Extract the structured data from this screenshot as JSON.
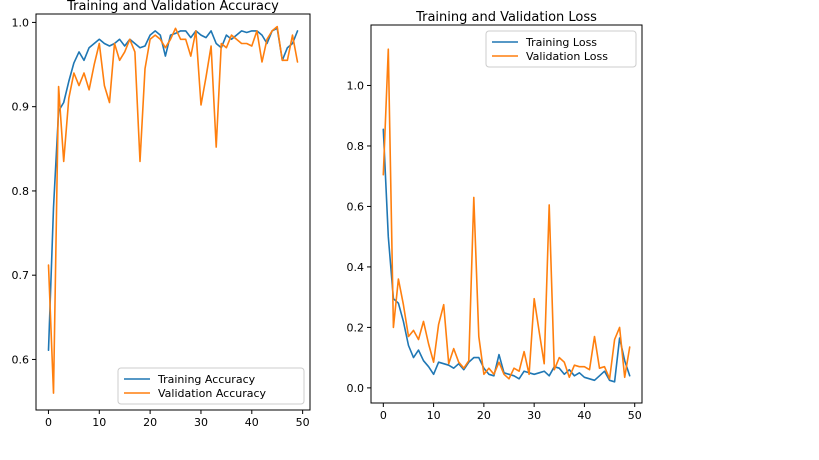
{
  "colors": {
    "training": "#1f77b4",
    "validation": "#ff7f0e"
  },
  "chart_data": [
    {
      "type": "line",
      "title": "Training and Validation Accuracy",
      "xlabel": "",
      "ylabel": "",
      "xlim": [
        -2.45,
        51.45
      ],
      "ylim": [
        0.54,
        1.01
      ],
      "xticks": [
        0,
        10,
        20,
        30,
        40,
        50
      ],
      "xtick_labels": [
        "0",
        "10",
        "20",
        "30",
        "40",
        "50"
      ],
      "yticks": [
        0.6,
        0.7,
        0.8,
        0.9,
        1.0
      ],
      "ytick_labels": [
        "0.6",
        "0.7",
        "0.8",
        "0.9",
        "1.0"
      ],
      "legend": "bottom-right",
      "grid": false,
      "x": [
        0,
        1,
        2,
        3,
        4,
        5,
        6,
        7,
        8,
        9,
        10,
        11,
        12,
        13,
        14,
        15,
        16,
        17,
        18,
        19,
        20,
        21,
        22,
        23,
        24,
        25,
        26,
        27,
        28,
        29,
        30,
        31,
        32,
        33,
        34,
        35,
        36,
        37,
        38,
        39,
        40,
        41,
        42,
        43,
        44,
        45,
        46,
        47,
        48,
        49
      ],
      "series": [
        {
          "name": "Training Accuracy",
          "color": "#1f77b4",
          "values": [
            0.611,
            0.78,
            0.895,
            0.905,
            0.93,
            0.952,
            0.965,
            0.955,
            0.97,
            0.975,
            0.98,
            0.975,
            0.972,
            0.975,
            0.98,
            0.972,
            0.98,
            0.975,
            0.97,
            0.972,
            0.985,
            0.99,
            0.985,
            0.96,
            0.985,
            0.987,
            0.99,
            0.99,
            0.982,
            0.99,
            0.985,
            0.982,
            0.99,
            0.975,
            0.97,
            0.985,
            0.98,
            0.985,
            0.99,
            0.988,
            0.99,
            0.99,
            0.985,
            0.975,
            0.99,
            0.993,
            0.955,
            0.97,
            0.975,
            0.99
          ]
        },
        {
          "name": "Validation Accuracy",
          "color": "#ff7f0e",
          "values": [
            0.712,
            0.56,
            0.924,
            0.835,
            0.91,
            0.94,
            0.925,
            0.94,
            0.92,
            0.95,
            0.975,
            0.925,
            0.905,
            0.975,
            0.955,
            0.965,
            0.98,
            0.965,
            0.835,
            0.945,
            0.98,
            0.985,
            0.98,
            0.97,
            0.98,
            0.993,
            0.98,
            0.98,
            0.96,
            0.99,
            0.902,
            0.935,
            0.972,
            0.852,
            0.975,
            0.97,
            0.985,
            0.98,
            0.975,
            0.975,
            0.972,
            0.99,
            0.953,
            0.98,
            0.99,
            0.995,
            0.955,
            0.955,
            0.985,
            0.953
          ]
        }
      ]
    },
    {
      "type": "line",
      "title": "Training and Validation Loss",
      "xlabel": "",
      "ylabel": "",
      "xlim": [
        -2.45,
        51.45
      ],
      "ylim": [
        -0.05,
        1.2
      ],
      "xticks": [
        0,
        10,
        20,
        30,
        40,
        50
      ],
      "xtick_labels": [
        "0",
        "10",
        "20",
        "30",
        "40",
        "50"
      ],
      "yticks": [
        0.0,
        0.2,
        0.4,
        0.6,
        0.8,
        1.0
      ],
      "ytick_labels": [
        "0.0",
        "0.2",
        "0.4",
        "0.6",
        "0.8",
        "1.0"
      ],
      "legend": "top-right",
      "grid": false,
      "x": [
        0,
        1,
        2,
        3,
        4,
        5,
        6,
        7,
        8,
        9,
        10,
        11,
        12,
        13,
        14,
        15,
        16,
        17,
        18,
        19,
        20,
        21,
        22,
        23,
        24,
        25,
        26,
        27,
        28,
        29,
        30,
        31,
        32,
        33,
        34,
        35,
        36,
        37,
        38,
        39,
        40,
        41,
        42,
        43,
        44,
        45,
        46,
        47,
        48,
        49
      ],
      "series": [
        {
          "name": "Training Loss",
          "color": "#1f77b4",
          "values": [
            0.855,
            0.5,
            0.295,
            0.28,
            0.22,
            0.14,
            0.1,
            0.125,
            0.09,
            0.07,
            0.045,
            0.085,
            0.08,
            0.075,
            0.065,
            0.08,
            0.06,
            0.085,
            0.1,
            0.1,
            0.065,
            0.045,
            0.04,
            0.11,
            0.05,
            0.045,
            0.04,
            0.03,
            0.055,
            0.05,
            0.045,
            0.05,
            0.055,
            0.04,
            0.07,
            0.065,
            0.045,
            0.06,
            0.04,
            0.05,
            0.035,
            0.03,
            0.025,
            0.04,
            0.055,
            0.025,
            0.02,
            0.165,
            0.09,
            0.04
          ]
        },
        {
          "name": "Validation Loss",
          "color": "#ff7f0e",
          "values": [
            0.705,
            1.12,
            0.2,
            0.36,
            0.275,
            0.17,
            0.19,
            0.16,
            0.22,
            0.145,
            0.085,
            0.21,
            0.275,
            0.08,
            0.13,
            0.085,
            0.065,
            0.09,
            0.63,
            0.17,
            0.045,
            0.065,
            0.045,
            0.085,
            0.045,
            0.03,
            0.065,
            0.055,
            0.12,
            0.045,
            0.295,
            0.185,
            0.08,
            0.605,
            0.06,
            0.1,
            0.085,
            0.035,
            0.075,
            0.07,
            0.07,
            0.06,
            0.17,
            0.065,
            0.07,
            0.03,
            0.16,
            0.2,
            0.035,
            0.135
          ]
        }
      ]
    }
  ]
}
